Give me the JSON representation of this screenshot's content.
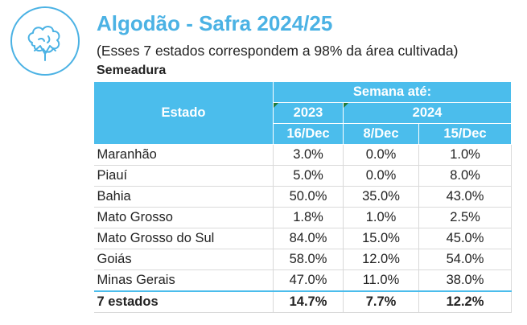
{
  "colors": {
    "accent": "#4bbdec",
    "title": "#4bb2e4"
  },
  "logo": {
    "icon": "cotton-boll-icon"
  },
  "title": "Algodão - Safra 2024/25",
  "subtitle": "(Esses 7 estados correspondem a 98% da área cultivada)",
  "section": "Semeadura",
  "table": {
    "estado_header": "Estado",
    "semana_header": "Semana até:",
    "year_2023": "2023",
    "year_2024": "2024",
    "dates": [
      "16/Dec",
      "8/Dec",
      "15/Dec"
    ],
    "rows": [
      {
        "estado": "Maranhão",
        "values": [
          "3.0%",
          "0.0%",
          "1.0%"
        ]
      },
      {
        "estado": "Piauí",
        "values": [
          "5.0%",
          "0.0%",
          "8.0%"
        ]
      },
      {
        "estado": "Bahia",
        "values": [
          "50.0%",
          "35.0%",
          "43.0%"
        ]
      },
      {
        "estado": "Mato Grosso",
        "values": [
          "1.8%",
          "1.0%",
          "2.5%"
        ]
      },
      {
        "estado": "Mato Grosso do Sul",
        "values": [
          "84.0%",
          "15.0%",
          "45.0%"
        ]
      },
      {
        "estado": "Goiás",
        "values": [
          "58.0%",
          "12.0%",
          "54.0%"
        ]
      },
      {
        "estado": "Minas Gerais",
        "values": [
          "47.0%",
          "11.0%",
          "38.0%"
        ]
      }
    ],
    "total": {
      "estado": "7 estados",
      "values": [
        "14.7%",
        "7.7%",
        "12.2%"
      ]
    }
  }
}
